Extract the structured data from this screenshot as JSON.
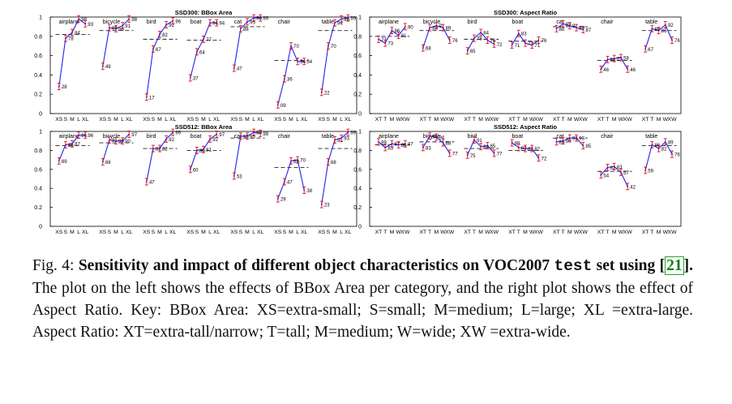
{
  "chart_data": [
    {
      "type": "line",
      "title": "SSD300: BBox Area",
      "groups": [
        "airplane",
        "bicycle",
        "bird",
        "boat",
        "cat",
        "chair",
        "table"
      ],
      "tick_labels": [
        "XS",
        "S",
        "M",
        "L",
        "XL"
      ],
      "values": [
        [
          0.28,
          0.78,
          0.84,
          0.98,
          0.93
        ],
        [
          0.49,
          0.89,
          0.88,
          0.91,
          0.98
        ],
        [
          0.17,
          0.67,
          0.82,
          0.92,
          0.96
        ],
        [
          0.37,
          0.64,
          0.77,
          0.94,
          0.94
        ],
        [
          0.47,
          0.88,
          0.95,
          0.99,
          0.99
        ],
        [
          0.09,
          0.36,
          0.7,
          0.54,
          0.54
        ],
        [
          0.22,
          0.7,
          0.94,
          0.98,
          0.99
        ]
      ],
      "baseline": [
        0.82,
        0.86,
        0.77,
        0.76,
        0.9,
        0.55,
        0.86
      ],
      "ylim": [
        0,
        1
      ],
      "yticks": [
        "0",
        "0.2",
        "0.4",
        "0.6",
        "0.8",
        "1"
      ]
    },
    {
      "type": "line",
      "title": "SSD300: Aspect Ratio",
      "groups": [
        "airplane",
        "bicycle",
        "bird",
        "boat",
        "cat",
        "chair",
        "table"
      ],
      "tick_labels": [
        "XT",
        "T",
        "M",
        "W",
        "XW"
      ],
      "values": [
        [
          0.77,
          0.73,
          0.86,
          0.81,
          0.9
        ],
        [
          0.68,
          0.89,
          0.91,
          0.89,
          0.76
        ],
        [
          0.65,
          0.78,
          0.84,
          0.76,
          0.72
        ],
        [
          0.71,
          0.83,
          0.73,
          0.71,
          0.76
        ],
        [
          0.88,
          0.93,
          0.91,
          0.89,
          0.87
        ],
        [
          0.46,
          0.56,
          0.57,
          0.58,
          0.46
        ],
        [
          0.67,
          0.88,
          0.86,
          0.92,
          0.76
        ]
      ],
      "baseline": [
        0.8,
        0.86,
        0.77,
        0.75,
        0.9,
        0.55,
        0.86
      ],
      "ylim": [
        0,
        1
      ],
      "yticks": [
        "0",
        "0.2",
        "0.4",
        "0.6",
        "0.8",
        "1"
      ]
    },
    {
      "type": "line",
      "title": "SSD512: BBox Area",
      "groups": [
        "airplane",
        "bicycle",
        "bird",
        "boat",
        "cat",
        "chair",
        "table"
      ],
      "tick_labels": [
        "XS",
        "S",
        "M",
        "L",
        "XL"
      ],
      "values": [
        [
          0.69,
          0.86,
          0.87,
          0.96,
          0.96
        ],
        [
          0.68,
          0.91,
          0.9,
          0.9,
          0.97
        ],
        [
          0.47,
          0.82,
          0.82,
          0.92,
          0.99
        ],
        [
          0.6,
          0.8,
          0.81,
          0.92,
          0.97
        ],
        [
          0.53,
          0.95,
          0.95,
          0.99,
          0.98
        ],
        [
          0.29,
          0.47,
          0.69,
          0.7,
          0.38
        ],
        [
          0.23,
          0.68,
          0.91,
          0.93,
          0.99
        ]
      ],
      "baseline": [
        0.85,
        0.88,
        0.82,
        0.8,
        0.93,
        0.62,
        0.82
      ],
      "ylim": [
        0,
        1
      ],
      "yticks": [
        "0",
        "0.2",
        "0.4",
        "0.6",
        "0.8",
        "1"
      ]
    },
    {
      "type": "line",
      "title": "SSD512: Aspect Ratio",
      "groups": [
        "airplane",
        "bicycle",
        "bird",
        "boat",
        "cat",
        "chair",
        "table"
      ],
      "tick_labels": [
        "XT",
        "T",
        "M",
        "W",
        "XW"
      ],
      "values": [
        [
          0.89,
          0.83,
          0.87,
          0.86,
          0.87
        ],
        [
          0.83,
          0.95,
          0.94,
          0.88,
          0.77
        ],
        [
          0.75,
          0.91,
          0.84,
          0.85,
          0.77
        ],
        [
          0.88,
          0.83,
          0.82,
          0.82,
          0.72
        ],
        [
          0.89,
          0.9,
          0.93,
          0.93,
          0.85
        ],
        [
          0.54,
          0.62,
          0.63,
          0.57,
          0.42
        ],
        [
          0.59,
          0.86,
          0.82,
          0.89,
          0.76
        ]
      ],
      "baseline": [
        0.86,
        0.89,
        0.82,
        0.8,
        0.93,
        0.58,
        0.85
      ],
      "ylim": [
        0,
        1
      ],
      "yticks": [
        "0",
        "0.2",
        "0.4",
        "0.6",
        "0.8",
        "1"
      ]
    }
  ],
  "caption": {
    "fig_label": "Fig. 4: ",
    "bold_a": "Sensitivity and impact of different object characteristics on VOC2007 ",
    "bold_mono": "test",
    "bold_b": " set using [",
    "ref": "21",
    "bold_c": "].",
    "body": " The plot on the left shows the effects of BBox Area per category, and the right plot shows the effect of Aspect Ratio. Key: BBox Area: XS=extra-small; S=small; M=medium; L=large; XL =extra-large. Aspect Ratio: XT=extra-tall/narrow; T=tall; M=medium; W=wide; XW =extra-wide."
  },
  "colors": {
    "line": "#2222ee",
    "error": "#ee1111",
    "baseline": "#222222",
    "axis": "#000000"
  }
}
